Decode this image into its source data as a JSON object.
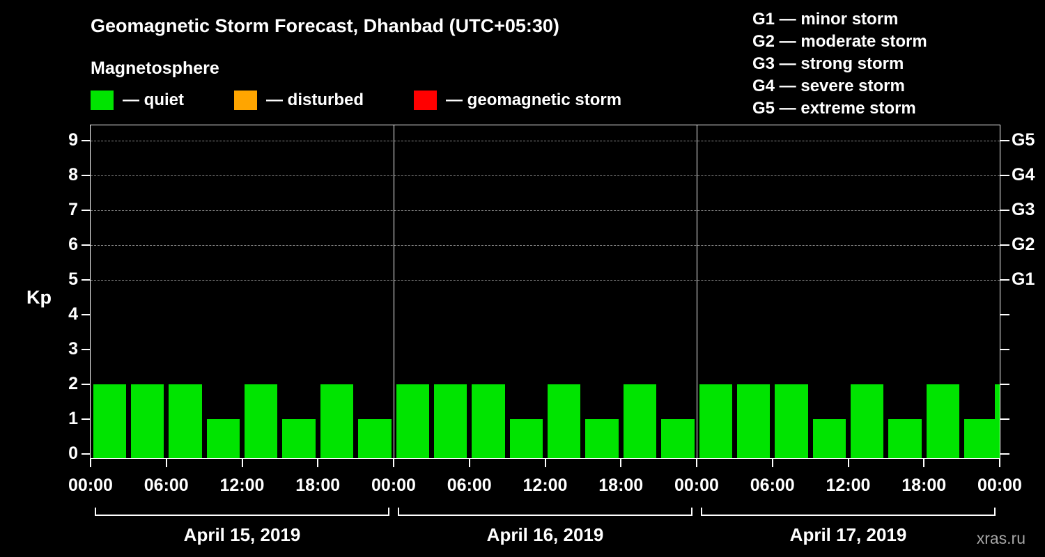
{
  "header": {
    "title": "Geomagnetic Storm Forecast, Dhanbad (UTC+05:30)",
    "subtitle": "Magnetosphere"
  },
  "legend": [
    {
      "label": "— quiet",
      "color": "#00e400"
    },
    {
      "label": "— disturbed",
      "color": "#ffa500"
    },
    {
      "label": "— geomagnetic storm",
      "color": "#ff0000"
    }
  ],
  "g_legend": [
    "G1 — minor storm",
    "G2 — moderate storm",
    "G3 — strong storm",
    "G4 — severe storm",
    "G5 — extreme storm"
  ],
  "watermark": "xras.ru",
  "chart_data": {
    "type": "bar",
    "title": "Geomagnetic Storm Forecast, Dhanbad (UTC+05:30)",
    "subtitle": "Magnetosphere",
    "ylabel": "Kp",
    "ylim": [
      0,
      9.5
    ],
    "y_ticks": [
      0,
      1,
      2,
      3,
      4,
      5,
      6,
      7,
      8,
      9
    ],
    "grid": {
      "horizontal_dashed_at_kp": [
        5,
        6,
        7,
        8,
        9
      ]
    },
    "legend_position": "top-left and top-right",
    "bar_color_quiet": "#00e400",
    "bar_color_disturbed": "#ffa500",
    "bar_color_storm": "#ff0000",
    "right_axis": [
      {
        "label": "G1",
        "kp": 5
      },
      {
        "label": "G2",
        "kp": 6
      },
      {
        "label": "G3",
        "kp": 7
      },
      {
        "label": "G4",
        "kp": 8
      },
      {
        "label": "G5",
        "kp": 9
      }
    ],
    "x_tick_labels": [
      "00:00",
      "06:00",
      "12:00",
      "18:00",
      "00:00",
      "06:00",
      "12:00",
      "18:00",
      "00:00",
      "06:00",
      "12:00",
      "18:00",
      "00:00"
    ],
    "interval_hours": 3,
    "days": [
      {
        "label": "April 15, 2019",
        "kp_values": [
          2,
          2,
          2,
          1,
          2,
          1,
          2,
          1
        ]
      },
      {
        "label": "April 16, 2019",
        "kp_values": [
          2,
          2,
          2,
          1,
          2,
          1,
          2,
          1
        ]
      },
      {
        "label": "April 17, 2019",
        "kp_values": [
          2,
          2,
          2,
          1,
          2,
          1,
          2,
          1
        ]
      }
    ],
    "trailing_partial_bar_kp": 2
  }
}
